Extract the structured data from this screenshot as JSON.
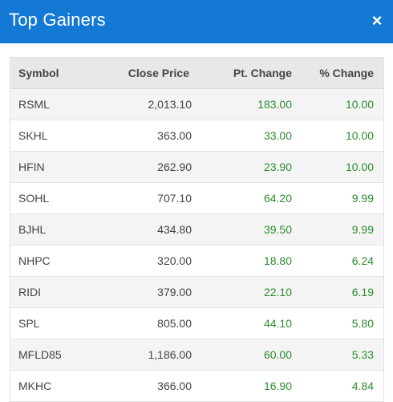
{
  "header": {
    "title": "Top Gainers",
    "close_glyph": "×"
  },
  "table": {
    "columns": [
      "Symbol",
      "Close Price",
      "Pt. Change",
      "% Change"
    ],
    "rows": [
      [
        "RSML",
        "2,013.10",
        "183.00",
        "10.00"
      ],
      [
        "SKHL",
        "363.00",
        "33.00",
        "10.00"
      ],
      [
        "HFIN",
        "262.90",
        "23.90",
        "10.00"
      ],
      [
        "SOHL",
        "707.10",
        "64.20",
        "9.99"
      ],
      [
        "BJHL",
        "434.80",
        "39.50",
        "9.99"
      ],
      [
        "NHPC",
        "320.00",
        "18.80",
        "6.24"
      ],
      [
        "RIDI",
        "379.00",
        "22.10",
        "6.19"
      ],
      [
        "SPL",
        "805.00",
        "44.10",
        "5.80"
      ],
      [
        "MFLD85",
        "1,186.00",
        "60.00",
        "5.33"
      ],
      [
        "MKHC",
        "366.00",
        "16.90",
        "4.84"
      ]
    ]
  },
  "colors": {
    "header_bg": "#1479d4",
    "gain": "#2e8b2e"
  }
}
